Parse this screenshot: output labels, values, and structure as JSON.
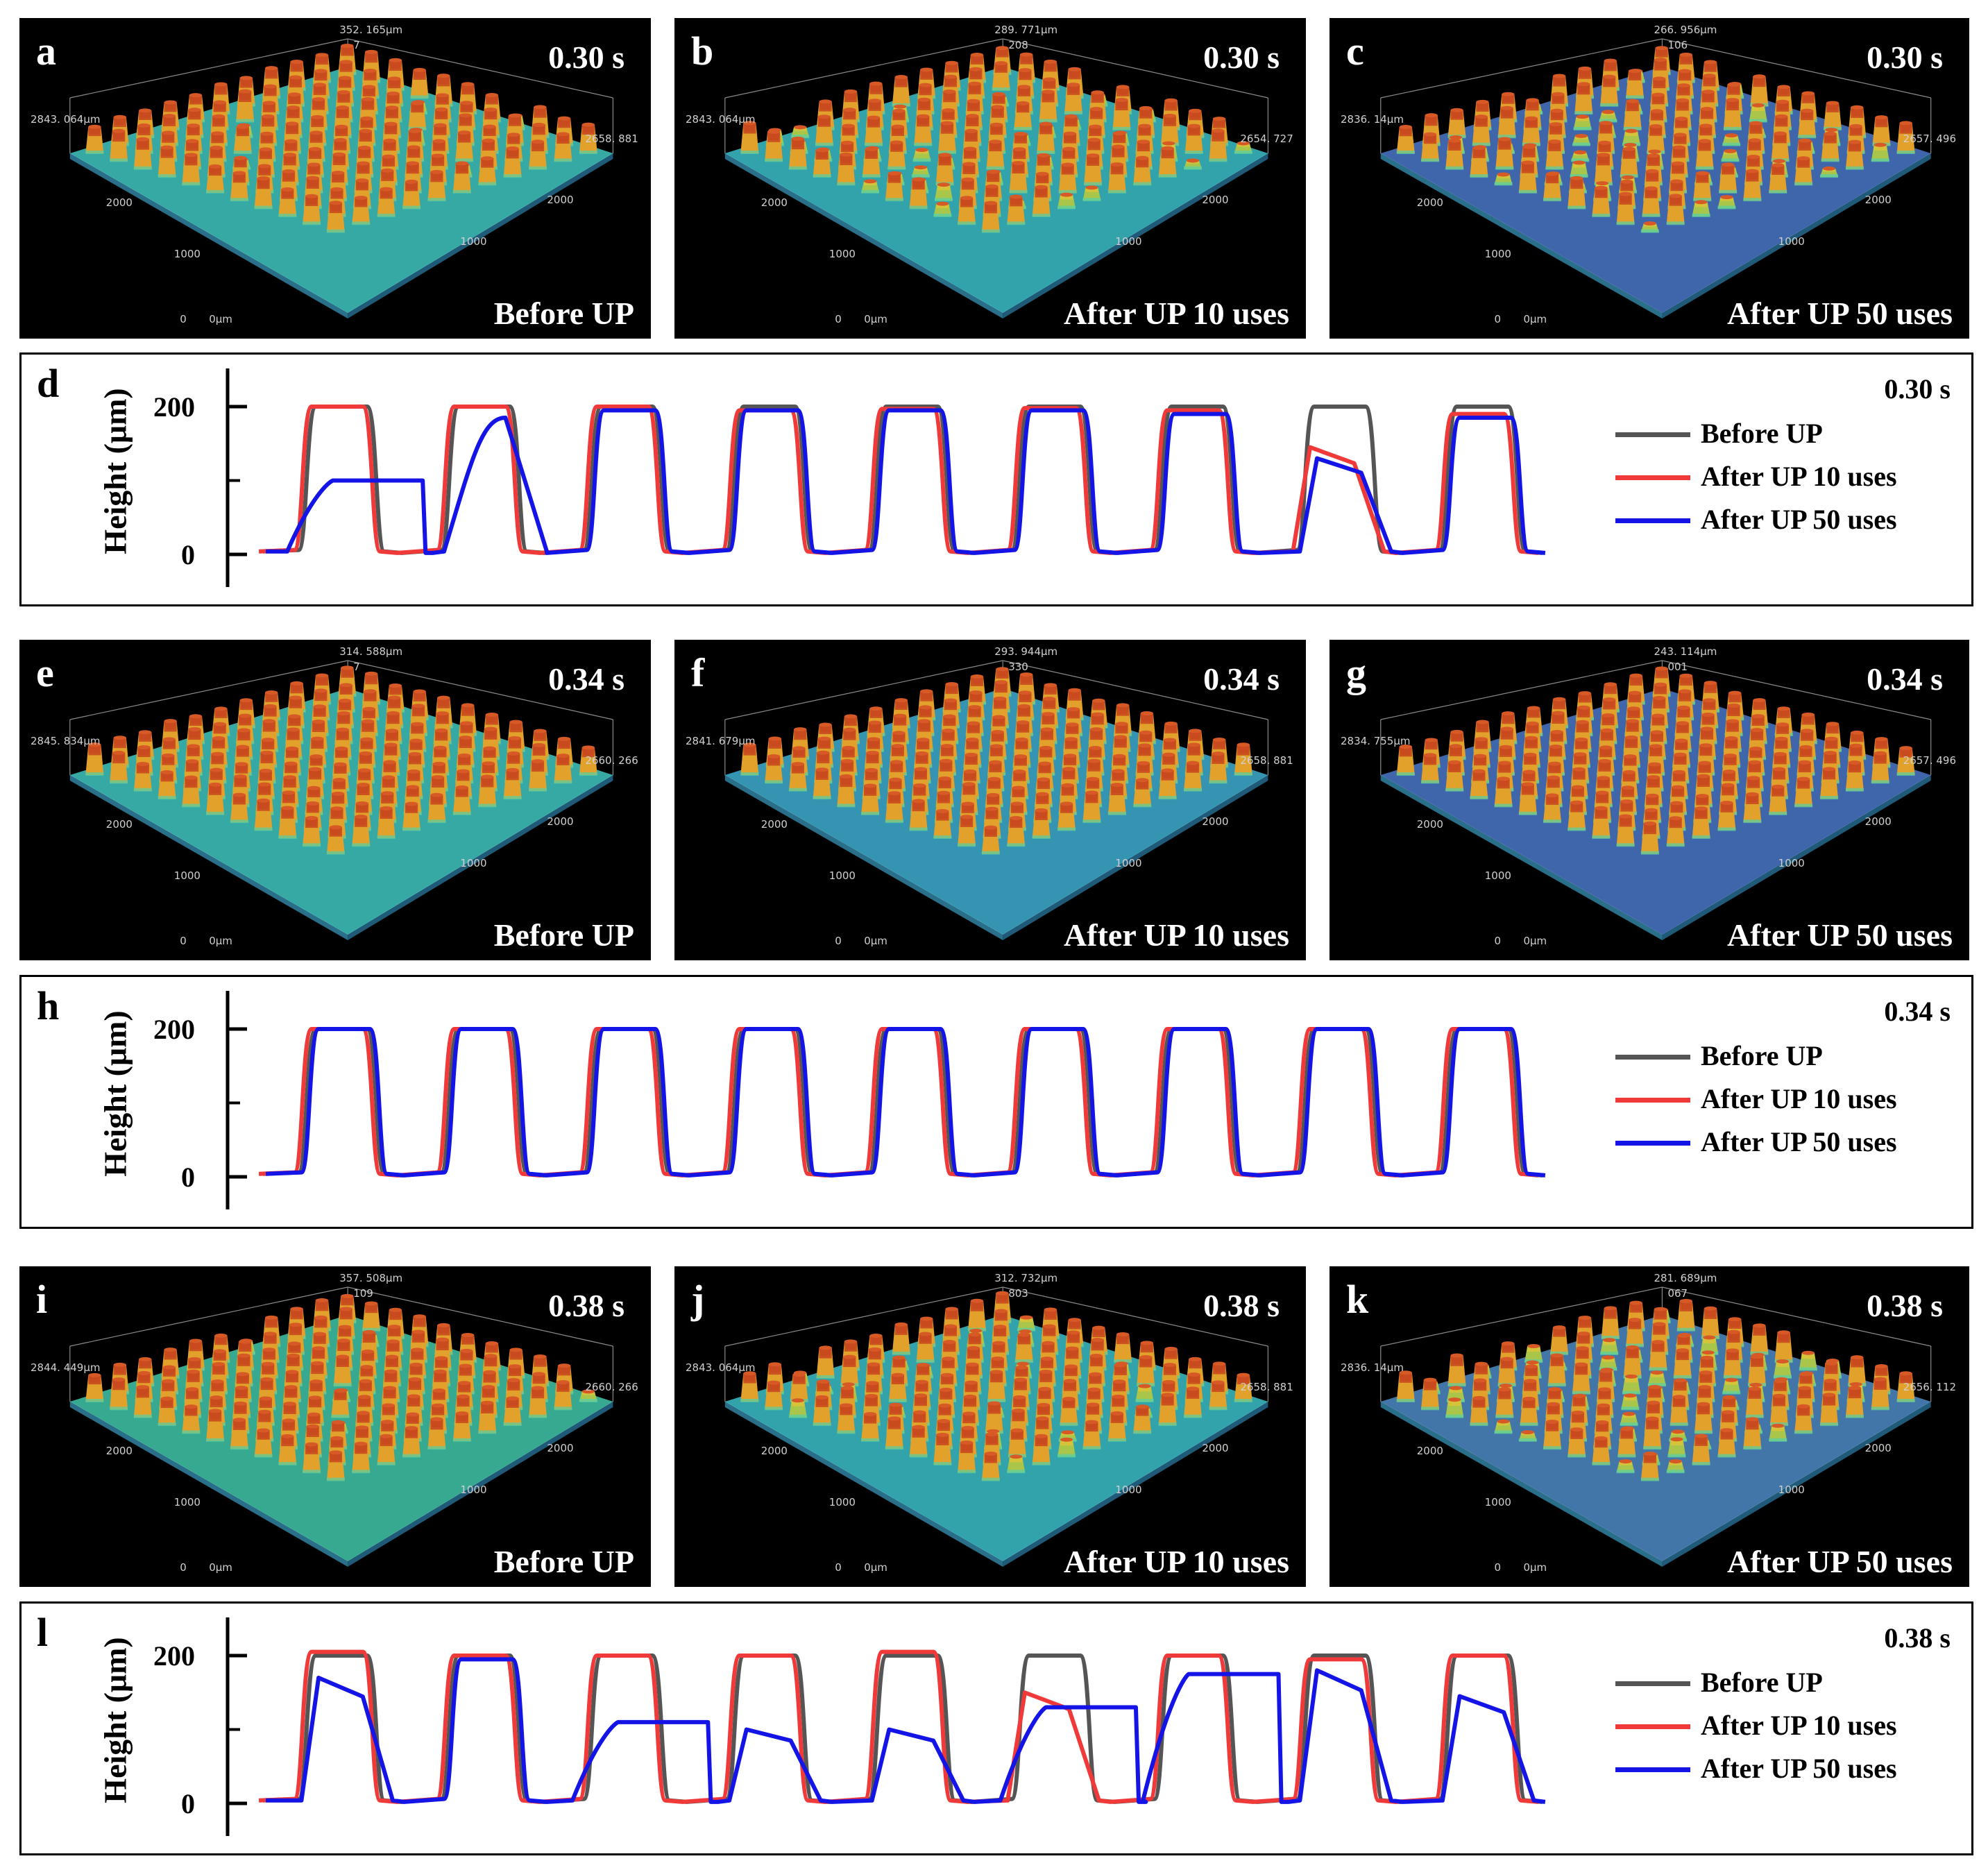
{
  "rows": [
    {
      "panels": [
        {
          "letter": "a",
          "time": "0.30 s",
          "caption": "Before UP",
          "top_label": "352. 165μm",
          "left_label": "2843. 064μm",
          "right_label": "2658. 881",
          "axis_a": "2000",
          "axis_b": "1000",
          "axis_c": "2000",
          "axis_d": "1000",
          "zero": "0",
          "zero_um": "0μm",
          "z_top": "7",
          "color": "#3fc7c2",
          "peak": "#c84a1e",
          "damage": 0.05
        },
        {
          "letter": "b",
          "time": "0.30 s",
          "caption": "After UP 10 uses",
          "top_label": "289. 771μm",
          "left_label": "2843. 064μm",
          "right_label": "2654. 727",
          "axis_a": "2000",
          "axis_b": "1000",
          "axis_c": "2000",
          "axis_d": "1000",
          "zero": "0",
          "zero_um": "0μm",
          "z_top": "208",
          "color": "#3bbfc8",
          "peak": "#c84a1e",
          "damage": 0.15
        },
        {
          "letter": "c",
          "time": "0.30 s",
          "caption": "After UP 50 uses",
          "top_label": "266. 956μm",
          "left_label": "2836. 14μm",
          "right_label": "2657. 496",
          "axis_a": "2000",
          "axis_b": "1000",
          "axis_c": "2000",
          "axis_d": "1000",
          "zero": "0",
          "zero_um": "0μm",
          "z_top": "106",
          "color": "#4a77c9",
          "peak": "#c84a1e",
          "damage": 0.3
        }
      ]
    },
    {
      "panels": [
        {
          "letter": "e",
          "time": "0.34 s",
          "caption": "Before UP",
          "top_label": "314. 588μm",
          "left_label": "2845. 834μm",
          "right_label": "2660. 266",
          "axis_a": "2000",
          "axis_b": "1000",
          "axis_c": "2000",
          "axis_d": "1000",
          "zero": "0",
          "zero_um": "0μm",
          "z_top": "7",
          "color": "#3fc7c2",
          "peak": "#c84a1e",
          "damage": 0.0
        },
        {
          "letter": "f",
          "time": "0.34 s",
          "caption": "After UP 10 uses",
          "top_label": "293. 944μm",
          "left_label": "2841. 679μm",
          "right_label": "2658. 881",
          "axis_a": "2000",
          "axis_b": "1000",
          "axis_c": "2000",
          "axis_d": "1000",
          "zero": "0",
          "zero_um": "0μm",
          "z_top": "330",
          "color": "#3eaed0",
          "peak": "#c84a1e",
          "damage": 0.0
        },
        {
          "letter": "g",
          "time": "0.34 s",
          "caption": "After UP 50 uses",
          "top_label": "243. 114μm",
          "left_label": "2834. 755μm",
          "right_label": "2657. 496",
          "axis_a": "2000",
          "axis_b": "1000",
          "axis_c": "2000",
          "axis_d": "1000",
          "zero": "0",
          "zero_um": "0μm",
          "z_top": "001",
          "color": "#4a77c9",
          "peak": "#c84a1e",
          "damage": 0.0
        }
      ]
    },
    {
      "panels": [
        {
          "letter": "i",
          "time": "0.38 s",
          "caption": "Before UP",
          "top_label": "357. 508μm",
          "left_label": "2844. 449μm",
          "right_label": "2660. 266",
          "axis_a": "2000",
          "axis_b": "1000",
          "axis_c": "2000",
          "axis_d": "1000",
          "zero": "0",
          "zero_um": "0μm",
          "z_top": "109",
          "color": "#3fc7a9",
          "peak": "#c84a1e",
          "damage": 0.05
        },
        {
          "letter": "j",
          "time": "0.38 s",
          "caption": "After UP 10 uses",
          "top_label": "312. 732μm",
          "left_label": "2843. 064μm",
          "right_label": "2658. 881",
          "axis_a": "2000",
          "axis_b": "1000",
          "axis_c": "2000",
          "axis_d": "1000",
          "zero": "0",
          "zero_um": "0μm",
          "z_top": "803",
          "color": "#3bbfc8",
          "peak": "#c84a1e",
          "damage": 0.12
        },
        {
          "letter": "k",
          "time": "0.38 s",
          "caption": "After UP 50 uses",
          "top_label": "281. 689μm",
          "left_label": "2836. 14μm",
          "right_label": "2656. 112",
          "axis_a": "2000",
          "axis_b": "1000",
          "axis_c": "2000",
          "axis_d": "1000",
          "zero": "0",
          "zero_um": "0μm",
          "z_top": "067",
          "color": "#4f8bc6",
          "peak": "#c84a1e",
          "damage": 0.35
        }
      ]
    }
  ],
  "profiles": [
    {
      "letter": "d",
      "time": "0.30 s",
      "ylabel": "Height (μm)",
      "ticks": [
        "0",
        "200"
      ]
    },
    {
      "letter": "h",
      "time": "0.34 s",
      "ylabel": "Height (μm)",
      "ticks": [
        "0",
        "200"
      ]
    },
    {
      "letter": "l",
      "time": "0.38 s",
      "ylabel": "Height (μm)",
      "ticks": [
        "0",
        "200"
      ]
    }
  ],
  "legend": [
    {
      "label": "Before UP",
      "color": "#555555"
    },
    {
      "label": "After UP 10 uses",
      "color": "#f03a3a"
    },
    {
      "label": "After UP 50 uses",
      "color": "#1414e6"
    }
  ],
  "chart_data": [
    {
      "type": "line",
      "panel": "d",
      "ylabel": "Height (μm)",
      "ylim": [
        0,
        200
      ],
      "series": [
        {
          "name": "Before UP",
          "color": "#555555",
          "pillars": [
            [
              200,
              1
            ],
            [
              200,
              1
            ],
            [
              200,
              1
            ],
            [
              200,
              1
            ],
            [
              200,
              1
            ],
            [
              200,
              1
            ],
            [
              200,
              1
            ],
            [
              200,
              1
            ],
            [
              200,
              1
            ]
          ]
        },
        {
          "name": "After UP 10 uses",
          "color": "#f03a3a",
          "pillars": [
            [
              200,
              1
            ],
            [
              200,
              1
            ],
            [
              200,
              1
            ],
            [
              195,
              1
            ],
            [
              197,
              1
            ],
            [
              198,
              1
            ],
            [
              195,
              1
            ],
            [
              145,
              2
            ],
            [
              190,
              1
            ]
          ]
        },
        {
          "name": "After UP 50 uses",
          "color": "#1414e6",
          "pillars": [
            [
              100,
              3
            ],
            [
              185,
              4
            ],
            [
              195,
              1
            ],
            [
              195,
              1
            ],
            [
              195,
              1
            ],
            [
              195,
              1
            ],
            [
              190,
              1
            ],
            [
              130,
              2
            ],
            [
              185,
              1
            ]
          ]
        }
      ]
    },
    {
      "type": "line",
      "panel": "h",
      "ylabel": "Height (μm)",
      "ylim": [
        0,
        200
      ],
      "series": [
        {
          "name": "Before UP",
          "color": "#555555",
          "pillars": [
            [
              200,
              1
            ],
            [
              200,
              1
            ],
            [
              200,
              1
            ],
            [
              200,
              1
            ],
            [
              200,
              1
            ],
            [
              200,
              1
            ],
            [
              200,
              1
            ],
            [
              200,
              1
            ],
            [
              200,
              1
            ]
          ]
        },
        {
          "name": "After UP 10 uses",
          "color": "#f03a3a",
          "pillars": [
            [
              200,
              1
            ],
            [
              200,
              1
            ],
            [
              200,
              1
            ],
            [
              200,
              1
            ],
            [
              200,
              1
            ],
            [
              200,
              1
            ],
            [
              200,
              1
            ],
            [
              200,
              1
            ],
            [
              200,
              1
            ]
          ]
        },
        {
          "name": "After UP 50 uses",
          "color": "#1414e6",
          "pillars": [
            [
              200,
              1
            ],
            [
              200,
              1
            ],
            [
              200,
              1
            ],
            [
              200,
              1
            ],
            [
              200,
              1
            ],
            [
              200,
              1
            ],
            [
              200,
              1
            ],
            [
              200,
              1
            ],
            [
              200,
              1
            ]
          ]
        }
      ]
    },
    {
      "type": "line",
      "panel": "l",
      "ylabel": "Height (μm)",
      "ylim": [
        0,
        200
      ],
      "series": [
        {
          "name": "Before UP",
          "color": "#555555",
          "pillars": [
            [
              200,
              1
            ],
            [
              200,
              1
            ],
            [
              200,
              1
            ],
            [
              200,
              1
            ],
            [
              200,
              1
            ],
            [
              200,
              1
            ],
            [
              200,
              1
            ],
            [
              200,
              1
            ],
            [
              200,
              1
            ]
          ]
        },
        {
          "name": "After UP 10 uses",
          "color": "#f03a3a",
          "pillars": [
            [
              205,
              1
            ],
            [
              200,
              1
            ],
            [
              200,
              1
            ],
            [
              200,
              1
            ],
            [
              205,
              1
            ],
            [
              150,
              2
            ],
            [
              200,
              1
            ],
            [
              195,
              1
            ],
            [
              200,
              1
            ]
          ]
        },
        {
          "name": "After UP 50 uses",
          "color": "#1414e6",
          "pillars": [
            [
              170,
              2
            ],
            [
              195,
              1
            ],
            [
              110,
              3
            ],
            [
              100,
              2
            ],
            [
              100,
              2
            ],
            [
              130,
              3
            ],
            [
              175,
              3
            ],
            [
              180,
              2
            ],
            [
              145,
              2
            ]
          ]
        }
      ]
    }
  ]
}
